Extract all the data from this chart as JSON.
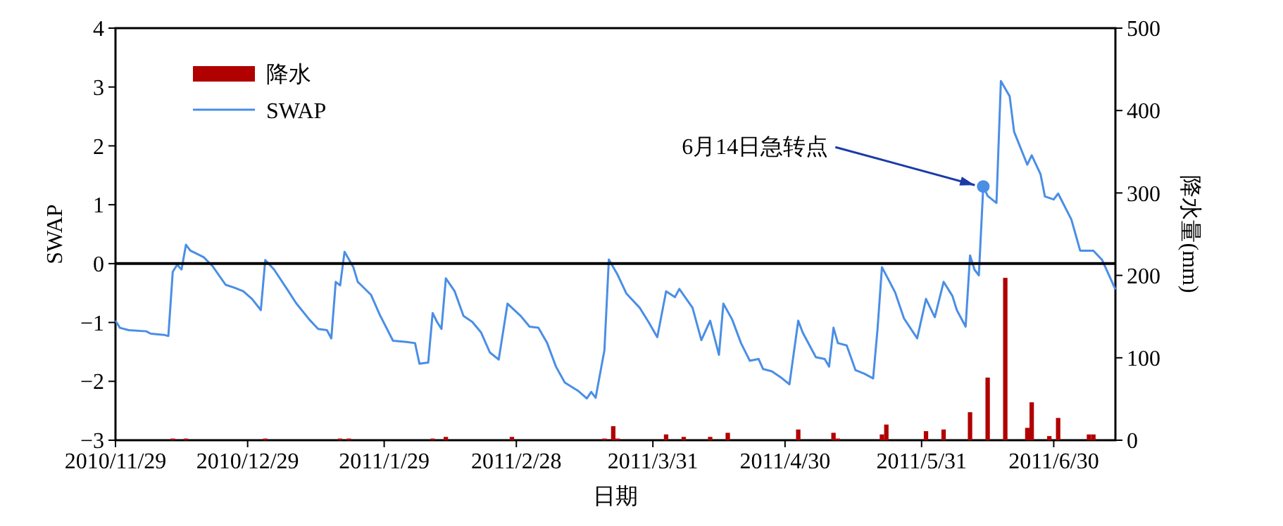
{
  "chart_data": {
    "type": "line",
    "xlabel": "日期",
    "ylabel": "SWAP",
    "y2label": "降水量(mm)",
    "xlim": [
      "2010-11-29",
      "2011-07-14"
    ],
    "xticks": [
      {
        "value": "2010-11-29",
        "label": "2010/11/29"
      },
      {
        "value": "2010-12-29",
        "label": "2010/12/29"
      },
      {
        "value": "2011-01-29",
        "label": "2011/1/29"
      },
      {
        "value": "2011-02-28",
        "label": "2011/2/28"
      },
      {
        "value": "2011-03-31",
        "label": "2011/3/31"
      },
      {
        "value": "2011-04-30",
        "label": "2011/4/30"
      },
      {
        "value": "2011-05-31",
        "label": "2011/5/31"
      },
      {
        "value": "2011-06-30",
        "label": "2011/6/30"
      }
    ],
    "ylim": [
      -3,
      4
    ],
    "yticks": [
      {
        "value": -3,
        "label": "−3"
      },
      {
        "value": -2,
        "label": "−2"
      },
      {
        "value": -1,
        "label": "−1"
      },
      0,
      1,
      2,
      3,
      4
    ],
    "y2lim": [
      0,
      500
    ],
    "y2ticks": [
      0,
      100,
      200,
      300,
      400,
      500
    ],
    "grid": false,
    "legend": "top left",
    "marker": "none",
    "line_style": "solid",
    "ref_lines": [
      {
        "axis": "y",
        "value": 0,
        "color": "#000000"
      }
    ],
    "annotations": [
      {
        "text": "6月14日急转点",
        "x": "2011-06-14",
        "y": 1.31
      }
    ],
    "series": [
      {
        "name": "降水",
        "type": "bar",
        "axis": "y2",
        "color": "#b00000",
        "x": [
          "2010-12-12",
          "2010-12-15",
          "2011-01-02",
          "2011-01-19",
          "2011-01-21",
          "2011-02-09",
          "2011-02-12",
          "2011-02-27",
          "2011-03-20",
          "2011-03-22",
          "2011-03-23",
          "2011-04-03",
          "2011-04-07",
          "2011-04-13",
          "2011-04-17",
          "2011-05-03",
          "2011-05-11",
          "2011-05-12",
          "2011-05-22",
          "2011-05-23",
          "2011-06-01",
          "2011-06-05",
          "2011-06-11",
          "2011-06-15",
          "2011-06-19",
          "2011-06-24",
          "2011-06-25",
          "2011-06-29",
          "2011-07-01",
          "2011-07-08",
          "2011-07-09"
        ],
        "values": [
          2,
          2,
          2,
          2,
          2,
          2,
          4,
          4,
          2,
          17,
          2,
          7,
          4,
          4,
          9,
          13,
          9,
          2,
          7,
          19,
          11,
          13,
          34,
          76,
          197,
          15,
          46,
          5,
          27,
          7,
          7
        ]
      },
      {
        "name": "SWAP",
        "axis": "y",
        "color": "#4a8ee6",
        "x": [
          "2010-11-29",
          "2010-11-30",
          "2010-12-02",
          "2010-12-06",
          "2010-12-07",
          "2010-12-10",
          "2010-12-11",
          "2010-12-12",
          "2010-12-13",
          "2010-12-14",
          "2010-12-15",
          "2010-12-16",
          "2010-12-19",
          "2010-12-21",
          "2010-12-24",
          "2010-12-26",
          "2010-12-28",
          "2010-12-30",
          "2011-01-01",
          "2011-01-02",
          "2011-01-04",
          "2011-01-07",
          "2011-01-09",
          "2011-01-12",
          "2011-01-14",
          "2011-01-16",
          "2011-01-17",
          "2011-01-18",
          "2011-01-19",
          "2011-01-20",
          "2011-01-22",
          "2011-01-23",
          "2011-01-26",
          "2011-01-28",
          "2011-01-31",
          "2011-02-03",
          "2011-02-05",
          "2011-02-06",
          "2011-02-08",
          "2011-02-09",
          "2011-02-10",
          "2011-02-11",
          "2011-02-12",
          "2011-02-14",
          "2011-02-16",
          "2011-02-18",
          "2011-02-20",
          "2011-02-22",
          "2011-02-24",
          "2011-02-26",
          "2011-03-01",
          "2011-03-03",
          "2011-03-05",
          "2011-03-07",
          "2011-03-09",
          "2011-03-11",
          "2011-03-14",
          "2011-03-16",
          "2011-03-17",
          "2011-03-18",
          "2011-03-20",
          "2011-03-21",
          "2011-03-23",
          "2011-03-25",
          "2011-03-28",
          "2011-03-30",
          "2011-04-01",
          "2011-04-03",
          "2011-04-05",
          "2011-04-06",
          "2011-04-09",
          "2011-04-11",
          "2011-04-13",
          "2011-04-15",
          "2011-04-16",
          "2011-04-18",
          "2011-04-20",
          "2011-04-22",
          "2011-04-24",
          "2011-04-25",
          "2011-04-27",
          "2011-04-29",
          "2011-05-01",
          "2011-05-03",
          "2011-05-04",
          "2011-05-07",
          "2011-05-09",
          "2011-05-10",
          "2011-05-11",
          "2011-05-12",
          "2011-05-14",
          "2011-05-16",
          "2011-05-18",
          "2011-05-20",
          "2011-05-21",
          "2011-05-22",
          "2011-05-25",
          "2011-05-27",
          "2011-05-30",
          "2011-06-01",
          "2011-06-03",
          "2011-06-05",
          "2011-06-07",
          "2011-06-08",
          "2011-06-10",
          "2011-06-11",
          "2011-06-12",
          "2011-06-13",
          "2011-06-14",
          "2011-06-15",
          "2011-06-17",
          "2011-06-18",
          "2011-06-20",
          "2011-06-21",
          "2011-06-24",
          "2011-06-25",
          "2011-06-27",
          "2011-06-28",
          "2011-06-30",
          "2011-07-01",
          "2011-07-04",
          "2011-07-06",
          "2011-07-09",
          "2011-07-11",
          "2011-07-14"
        ],
        "values": [
          -0.97,
          -1.09,
          -1.13,
          -1.15,
          -1.19,
          -1.21,
          -1.23,
          -0.14,
          -0.02,
          -0.1,
          0.32,
          0.22,
          0.11,
          -0.04,
          -0.36,
          -0.41,
          -0.47,
          -0.6,
          -0.79,
          0.06,
          -0.1,
          -0.44,
          -0.67,
          -0.95,
          -1.11,
          -1.13,
          -1.27,
          -0.31,
          -0.37,
          0.2,
          -0.06,
          -0.31,
          -0.53,
          -0.87,
          -1.31,
          -1.33,
          -1.35,
          -1.7,
          -1.68,
          -0.84,
          -0.99,
          -1.11,
          -0.25,
          -0.47,
          -0.89,
          -0.99,
          -1.17,
          -1.51,
          -1.63,
          -0.68,
          -0.89,
          -1.07,
          -1.09,
          -1.35,
          -1.75,
          -2.02,
          -2.16,
          -2.29,
          -2.18,
          -2.28,
          -1.47,
          0.07,
          -0.19,
          -0.51,
          -0.75,
          -0.99,
          -1.25,
          -0.47,
          -0.57,
          -0.43,
          -0.75,
          -1.3,
          -0.97,
          -1.55,
          -0.68,
          -0.95,
          -1.35,
          -1.65,
          -1.62,
          -1.79,
          -1.83,
          -1.93,
          -2.05,
          -0.97,
          -1.17,
          -1.59,
          -1.62,
          -1.75,
          -1.09,
          -1.35,
          -1.39,
          -1.81,
          -1.87,
          -1.95,
          -1.11,
          -0.06,
          -0.49,
          -0.93,
          -1.27,
          -0.6,
          -0.91,
          -0.31,
          -0.55,
          -0.79,
          -1.07,
          0.14,
          -0.1,
          -0.2,
          1.31,
          1.15,
          1.03,
          3.1,
          2.84,
          2.24,
          1.68,
          1.84,
          1.52,
          1.14,
          1.09,
          1.19,
          0.75,
          0.22,
          0.22,
          0.06,
          -0.44
        ]
      }
    ]
  }
}
